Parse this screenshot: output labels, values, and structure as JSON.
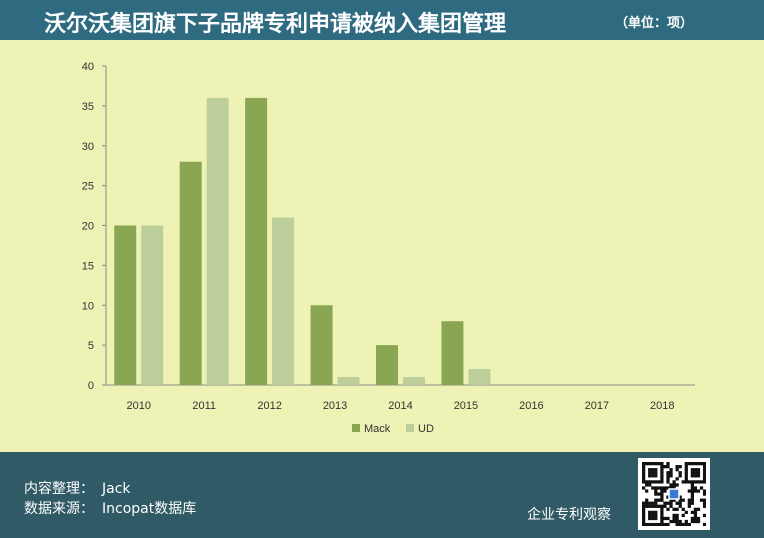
{
  "header": {
    "title": "沃尔沃集团旗下子品牌专利申请被纳入集团管理",
    "unit": "（单位：项）"
  },
  "chart_data": {
    "type": "bar",
    "categories": [
      "2010",
      "2011",
      "2012",
      "2013",
      "2014",
      "2015",
      "2016",
      "2017",
      "2018"
    ],
    "series": [
      {
        "name": "Mack",
        "values": [
          20,
          28,
          36,
          10,
          5,
          8,
          0,
          0,
          0
        ],
        "color": "#8aa653"
      },
      {
        "name": "UD",
        "values": [
          20,
          36,
          21,
          1,
          1,
          2,
          0,
          0,
          0
        ],
        "color": "#bccf9a"
      }
    ],
    "yticks": [
      "0",
      "5",
      "10",
      "15",
      "20",
      "25",
      "30",
      "35",
      "40"
    ],
    "ylim": [
      0,
      40
    ],
    "title": "",
    "xlabel": "",
    "ylabel": "",
    "legend_position": "bottom-center"
  },
  "footer": {
    "credit_label": "内容整理：",
    "credit_value": "Jack",
    "source_label": "数据来源：",
    "source_value": "Incopat数据库",
    "brand": "企业专利观察"
  },
  "colors": {
    "header_bg": "#2e6b80",
    "plot_bg": "#eef2b4",
    "footer_bg": "#2f5a66"
  }
}
